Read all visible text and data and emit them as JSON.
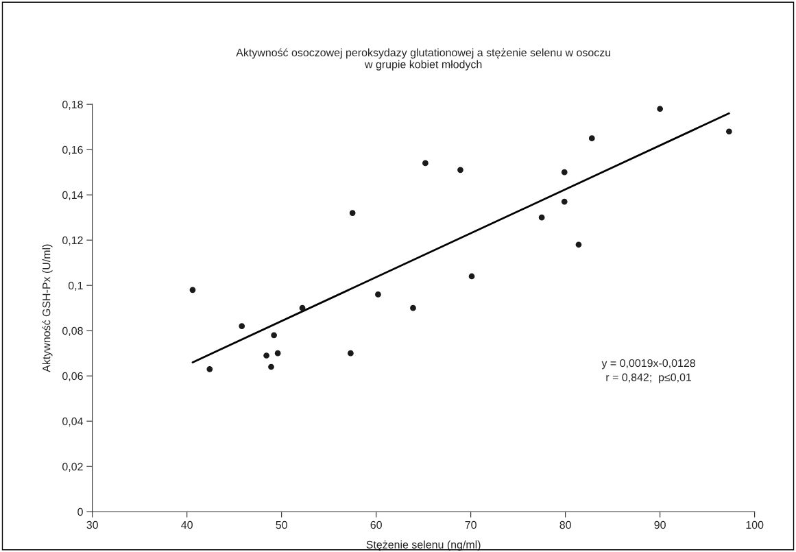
{
  "chart_data": {
    "type": "scatter",
    "title": "Aktywność osoczowej peroksydazy glutationowej a stężenie selenu w osoczu\nw grupie kobiet młodych",
    "xlabel": "Stężenie selenu (ng/ml)",
    "ylabel": "Aktywność GSH-Px (U/ml)",
    "series": [
      {
        "color": "#1a1a1a",
        "marker": "circle",
        "x": [
          40.6,
          42.4,
          45.8,
          48.4,
          49.2,
          48.9,
          49.6,
          52.2,
          57.5,
          57.3,
          60.2,
          63.9,
          65.2,
          68.9,
          70.1,
          77.5,
          79.9,
          79.9,
          81.4,
          82.8,
          90.0,
          97.3
        ],
        "values": [
          0.098,
          0.063,
          0.082,
          0.069,
          0.078,
          0.064,
          0.07,
          0.09,
          0.132,
          0.07,
          0.096,
          0.09,
          0.154,
          0.151,
          0.104,
          0.13,
          0.15,
          0.137,
          0.118,
          0.165,
          0.178,
          0.168
        ]
      },
      {
        "type": "line",
        "color": "#000000",
        "line_style": "solid",
        "x": [
          40.6,
          97.3
        ],
        "values": [
          0.066,
          0.176
        ]
      }
    ],
    "annotations": [
      "y = 0,0019x-0,0128\nr = 0,842;  p≤0,01"
    ],
    "xlim": [
      30,
      100
    ],
    "ylim": [
      0,
      0.18
    ],
    "xticks": [
      30,
      40,
      50,
      60,
      70,
      80,
      90,
      100
    ],
    "yticks": [
      {
        "value": 0,
        "label": "0"
      },
      {
        "value": 0.02,
        "label": "0,02"
      },
      {
        "value": 0.04,
        "label": "0,04"
      },
      {
        "value": 0.06,
        "label": "0,06"
      },
      {
        "value": 0.08,
        "label": "0,08"
      },
      {
        "value": 0.1,
        "label": "0,1"
      },
      {
        "value": 0.12,
        "label": "0,12"
      },
      {
        "value": 0.14,
        "label": "0,14"
      },
      {
        "value": 0.16,
        "label": "0,16"
      },
      {
        "value": 0.18,
        "label": "0,18"
      }
    ],
    "grid": false
  }
}
